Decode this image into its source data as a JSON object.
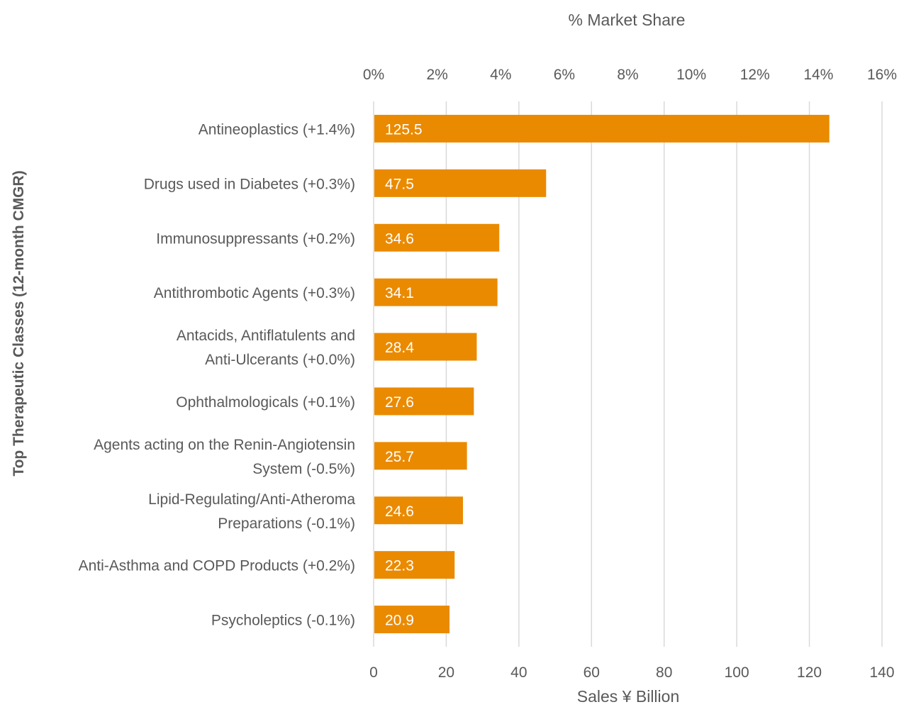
{
  "chart_data": {
    "type": "bar",
    "orientation": "horizontal",
    "ylabel": "Top Therapeutic Classes (12-month CMGR)",
    "xlabel_bottom": "Sales ¥ Billion",
    "xlabel_top": "% Market Share",
    "xlim_bottom": [
      0,
      140
    ],
    "xticks_bottom": [
      "0",
      "20",
      "40",
      "60",
      "80",
      "100",
      "120",
      "140"
    ],
    "xlim_top": [
      0,
      16
    ],
    "xticks_top": [
      "0%",
      "2%",
      "4%",
      "6%",
      "8%",
      "10%",
      "12%",
      "14%",
      "16%"
    ],
    "grid": true,
    "bar_color": "#EA8A00",
    "categories": [
      [
        "Antineoplastics (+1.4%)"
      ],
      [
        "Drugs used in Diabetes  (+0.3%)"
      ],
      [
        "Immunosuppressants  (+0.2%)"
      ],
      [
        "Antithrombotic Agents  (+0.3%)"
      ],
      [
        "Antacids, Antiflatulents and",
        "Anti-Ulcerants  (+0.0%)"
      ],
      [
        "Ophthalmologicals (+0.1%)"
      ],
      [
        "Agents acting on the Renin-Angiotensin",
        "System  (-0.5%)"
      ],
      [
        "Lipid-Regulating/Anti-Atheroma",
        "Preparations (-0.1%)"
      ],
      [
        "Anti-Asthma and COPD Products (+0.2%)"
      ],
      [
        "Psycholeptics (-0.1%)"
      ]
    ],
    "values": [
      125.5,
      47.5,
      34.6,
      34.1,
      28.4,
      27.6,
      25.7,
      24.6,
      22.3,
      20.9
    ],
    "value_labels": [
      "125.5",
      "47.5",
      "34.6",
      "34.1",
      "28.4",
      "27.6",
      "25.7",
      "24.6",
      "22.3",
      "20.9"
    ]
  }
}
